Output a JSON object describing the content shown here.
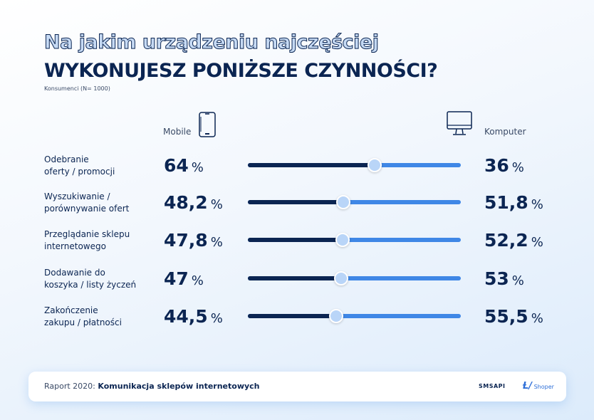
{
  "title_line1": "Na jakim urządzeniu najczęściej",
  "title_line2": "WYKONUJESZ PONIŻSZE CZYNNOŚCI?",
  "subtitle": "Konsumenci (N= 1000)",
  "colors": {
    "mobile": "#0b2552",
    "computer": "#3f87e6",
    "knob": "#b9d5f8"
  },
  "chart_data": {
    "type": "bar",
    "stacked": true,
    "orientation": "horizontal",
    "series": [
      {
        "name": "Mobile",
        "icon": "smartphone-icon",
        "values": [
          64,
          48.2,
          47.8,
          47,
          44.5
        ]
      },
      {
        "name": "Komputer",
        "icon": "desktop-computer-icon",
        "values": [
          36,
          51.8,
          52.2,
          53,
          55.5
        ]
      }
    ],
    "categories": [
      "Odebranie\noferty / promocji",
      "Wyszukiwanie /\nporównywanie ofert",
      "Przeglądanie sklepu\ninternetowego",
      "Dodawanie do\nkoszyka / listy życzeń",
      "Zakończenie\nzakupu / płatności"
    ],
    "mobile_labels": [
      "64",
      "48,2",
      "47,8",
      "47",
      "44,5"
    ],
    "computer_labels": [
      "36",
      "51,8",
      "52,2",
      "53",
      "55,5"
    ],
    "unit": "%",
    "xlim": [
      0,
      100
    ]
  },
  "footer": {
    "prefix": "Raport 2020:",
    "title": "Komunikacja sklepów internetowych",
    "logo1": "SMSAPI",
    "logo2": "Shoper"
  }
}
